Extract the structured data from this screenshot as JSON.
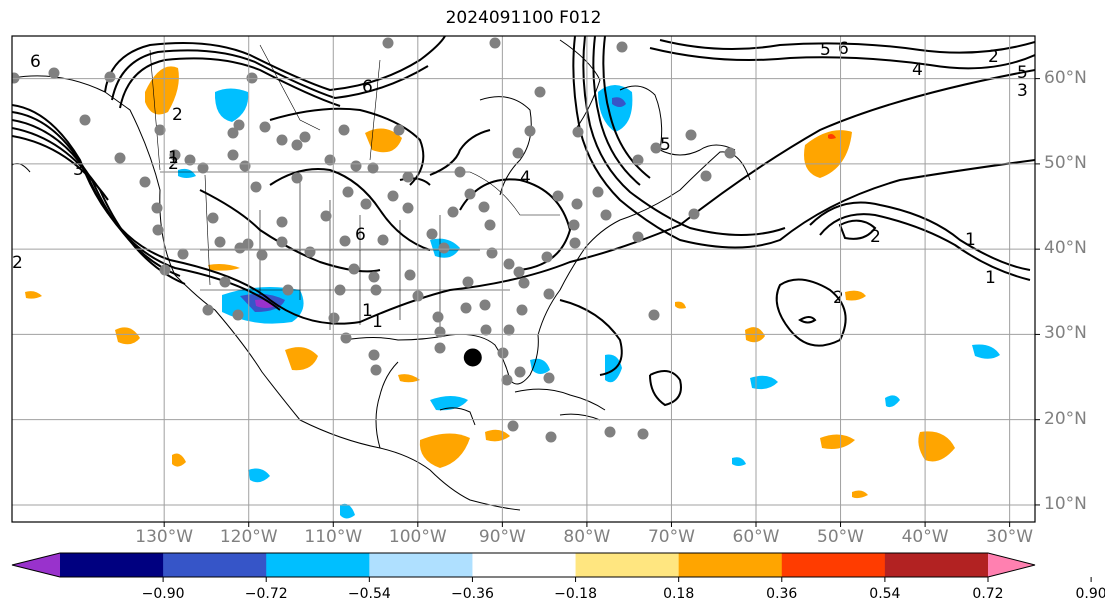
{
  "title": "2024091100 F012",
  "map": {
    "projection": "equirectangular",
    "extent": {
      "lon": [
        -148,
        -27
      ],
      "lat": [
        8,
        65
      ]
    },
    "lat_ticks": [
      {
        "value": 10,
        "label": "10°N"
      },
      {
        "value": 20,
        "label": "20°N"
      },
      {
        "value": 30,
        "label": "30°N"
      },
      {
        "value": 40,
        "label": "40°N"
      },
      {
        "value": 50,
        "label": "50°N"
      },
      {
        "value": 60,
        "label": "60°N"
      }
    ],
    "lon_ticks": [
      {
        "value": -130,
        "label": "130°W"
      },
      {
        "value": -120,
        "label": "120°W"
      },
      {
        "value": -110,
        "label": "110°W"
      },
      {
        "value": -100,
        "label": "100°W"
      },
      {
        "value": -90,
        "label": "90°W"
      },
      {
        "value": -80,
        "label": "80°W"
      },
      {
        "value": -70,
        "label": "70°W"
      },
      {
        "value": -60,
        "label": "60°W"
      },
      {
        "value": -50,
        "label": "50°W"
      },
      {
        "value": -40,
        "label": "40°W"
      },
      {
        "value": -30,
        "label": "30°W"
      }
    ],
    "grid": true,
    "marker": {
      "lon": -93.5,
      "lat": 27.3,
      "color": "#000000",
      "meaning": "storm center"
    },
    "station_color": "#808080"
  },
  "colorbar": {
    "boundaries": [
      "−0.90",
      "−0.72",
      "−0.54",
      "−0.36",
      "−0.18",
      "0.18",
      "0.36",
      "0.54",
      "0.72",
      "0.90"
    ],
    "colors": [
      "#9932cc",
      "#000080",
      "#3655c8",
      "#00bfff",
      "#afe0ff",
      "#ffffff",
      "#ffe680",
      "#ffa500",
      "#ff3c00",
      "#b22222",
      "#ff80b0"
    ],
    "extend": "both"
  },
  "contour_labels": [
    "6",
    "2",
    "6",
    "5",
    "6",
    "4",
    "3",
    "5",
    "2",
    "1",
    "3",
    "2",
    "2",
    "1",
    "1",
    "2",
    "1",
    "1",
    "4",
    "5",
    "6",
    "2"
  ]
}
